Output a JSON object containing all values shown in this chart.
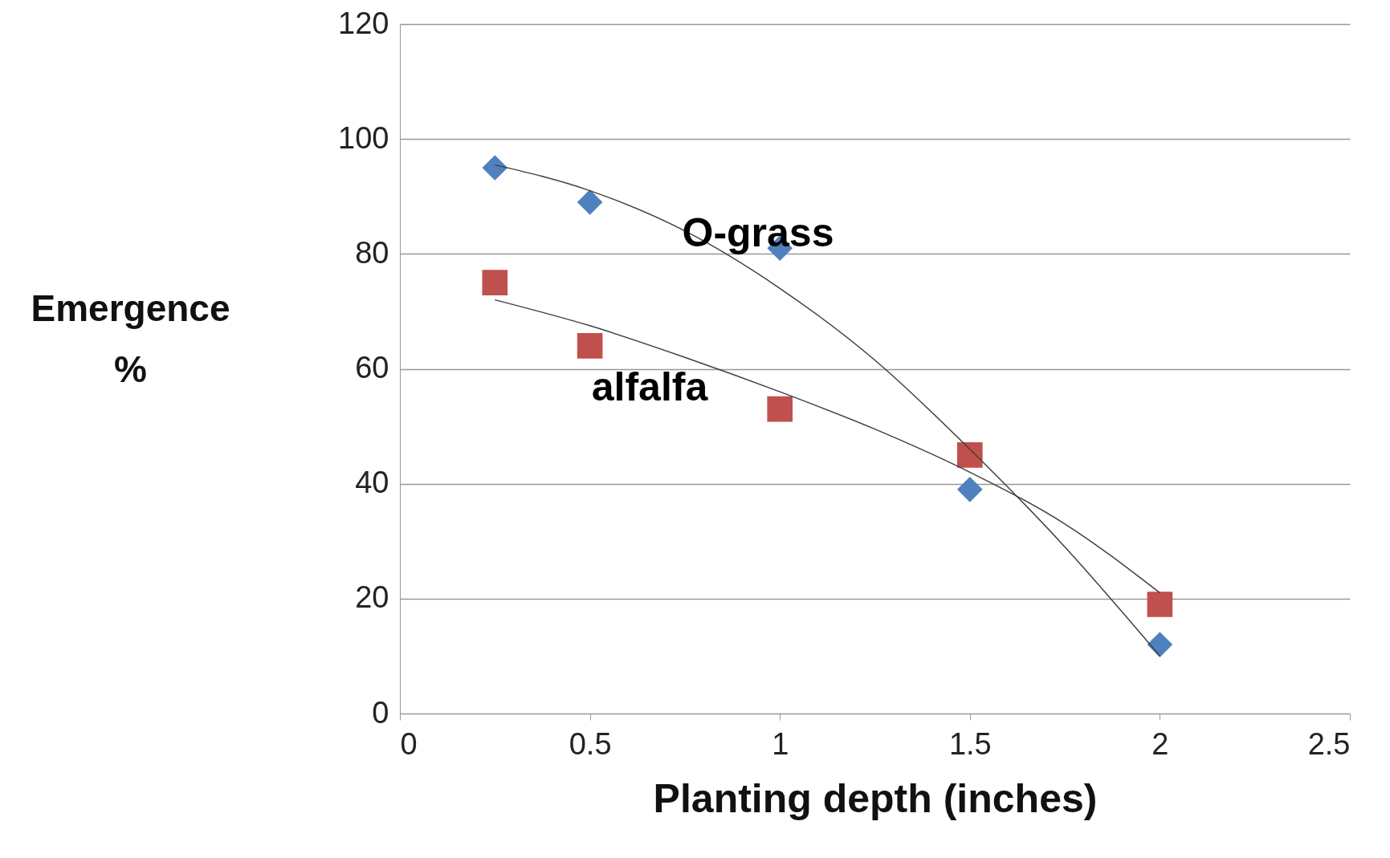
{
  "chart_data": {
    "type": "scatter",
    "xlabel": "Planting depth (inches)",
    "ylabel": "Emergence %",
    "xlim": [
      0,
      2.5
    ],
    "xticks": [
      0,
      0.5,
      1,
      1.5,
      2,
      2.5
    ],
    "ylim": [
      0,
      120
    ],
    "yticks": [
      0,
      20,
      40,
      60,
      80,
      100,
      120
    ],
    "grid": "y",
    "series": [
      {
        "marker": "diamond",
        "color": "#4f81bd",
        "x": [
          0.25,
          0.5,
          1,
          1.5,
          2
        ],
        "values": [
          95,
          89,
          81,
          39,
          12
        ]
      },
      {
        "marker": "square",
        "color": "#c0504d",
        "x": [
          0.25,
          0.5,
          1,
          1.5,
          2
        ],
        "values": [
          75,
          64,
          53,
          45,
          19
        ]
      },
      {
        "type": "line",
        "marker": "none",
        "color": "#404040",
        "x": [
          0.25,
          0.5,
          0.75,
          1,
          1.25,
          1.5,
          1.75,
          2
        ],
        "values": [
          95.5,
          91,
          84,
          74,
          61.5,
          46,
          29,
          10
        ]
      },
      {
        "type": "line",
        "marker": "none",
        "color": "#404040",
        "x": [
          0.25,
          0.5,
          0.75,
          1,
          1.25,
          1.5,
          1.75,
          2
        ],
        "values": [
          72,
          67.5,
          62,
          56,
          49.5,
          42,
          33,
          21
        ]
      }
    ],
    "annotations": [
      "O-grass",
      "alfalfa"
    ]
  }
}
